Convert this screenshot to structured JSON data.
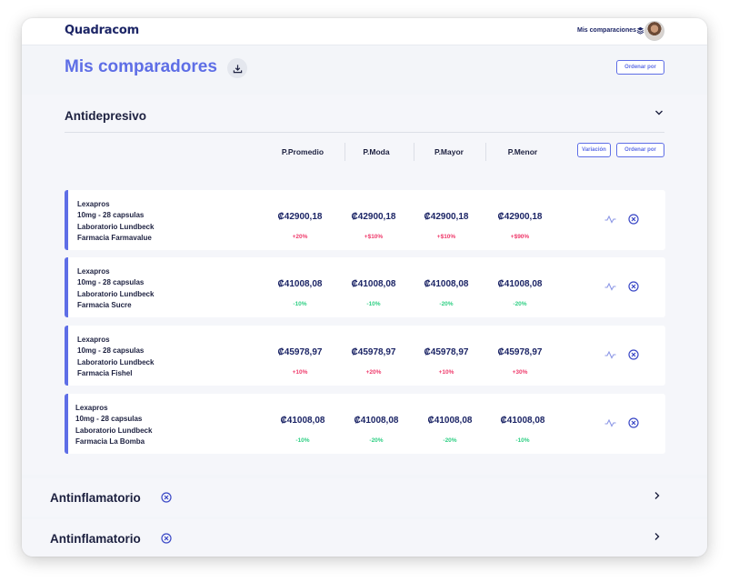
{
  "app": {
    "logo": "Quadracom",
    "nav_link": "Mis comparaciones"
  },
  "header": {
    "title": "Mis comparadores",
    "sort_button": "Ordenar por"
  },
  "section": {
    "title": "Antidepresivo",
    "columns": [
      "P.Promedio",
      "P.Moda",
      "P.Mayor",
      "P.Menor"
    ],
    "variation_button": "Variación",
    "sort_button": "Ordenar por",
    "rows": [
      {
        "name": "Lexapros",
        "dose": "10mg - 28 capsulas",
        "lab": "Laboratorio Lundbeck",
        "pharmacy": "Farmacia Farmavalue",
        "prices": [
          "₡42900,18",
          "₡42900,18",
          "₡42900,18",
          "₡42900,18"
        ],
        "deltas": [
          "+20%",
          "+$10%",
          "+$10%",
          "+$90%"
        ],
        "trend": "up"
      },
      {
        "name": "Lexapros",
        "dose": "10mg - 28 capsulas",
        "lab": "Laboratorio Lundbeck",
        "pharmacy": "Farmacia Sucre",
        "prices": [
          "₡41008,08",
          "₡41008,08",
          "₡41008,08",
          "₡41008,08"
        ],
        "deltas": [
          "-10%",
          "-10%",
          "-20%",
          "-20%"
        ],
        "trend": "down"
      },
      {
        "name": "Lexapros",
        "dose": "10mg - 28 capsulas",
        "lab": "Laboratorio Lundbeck",
        "pharmacy": "Farmacia Fishel",
        "prices": [
          "₡45978,97",
          "₡45978,97",
          "₡45978,97",
          "₡45978,97"
        ],
        "deltas": [
          "+10%",
          "+20%",
          "+10%",
          "+30%"
        ],
        "trend": "up"
      },
      {
        "name": "Lexapros",
        "dose": "10mg - 28 capsulas",
        "lab": "Laboratorio Lundbeck",
        "pharmacy": "Farmacia La Bomba",
        "prices": [
          "₡41008,08",
          "₡41008,08",
          "₡41008,08",
          "₡41008,08"
        ],
        "deltas": [
          "-10%",
          "-20%",
          "-20%",
          "-10%"
        ],
        "trend": "down"
      }
    ]
  },
  "collapsed_sections": [
    {
      "title": "Antinflamatorio"
    },
    {
      "title": "Antinflamatorio"
    }
  ],
  "icons": {
    "download": "download-icon",
    "stack": "layers-icon",
    "chevron_down": "chevron-down-icon",
    "chevron_right": "chevron-right-icon",
    "chart": "activity-icon",
    "close": "close-circle-icon"
  },
  "colors": {
    "accent": "#5e6ee6",
    "navy": "#1c2566",
    "up": "#ef3a6b",
    "down": "#2fcf84"
  }
}
